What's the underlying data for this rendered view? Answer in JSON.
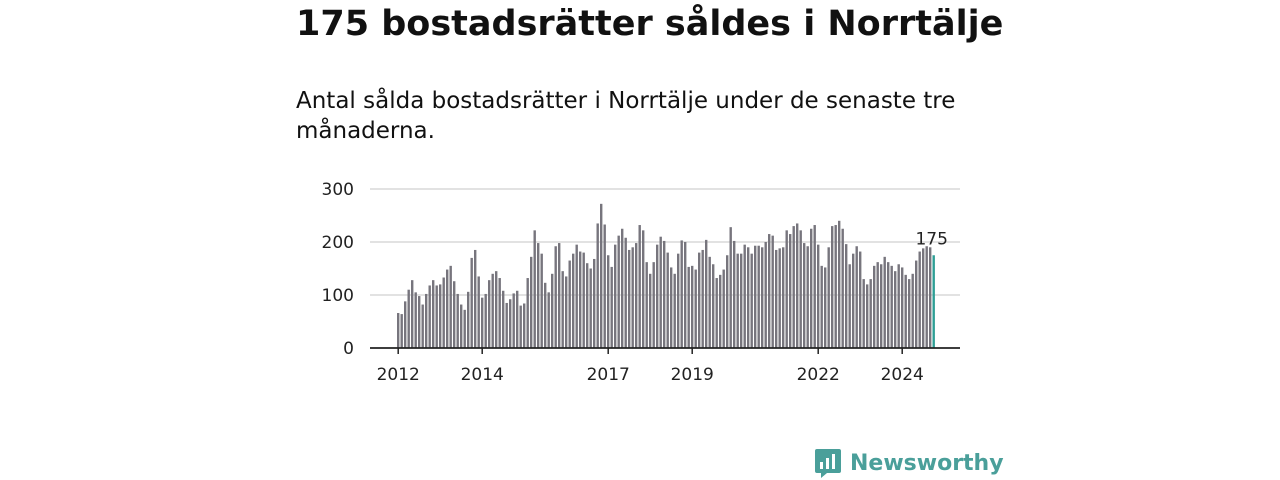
{
  "header": {
    "title": "175 bostadsrätter såldes i Norrtälje",
    "subtitle": "Antal sålda bostadsrätter i Norrtälje under de senaste tre månaderna."
  },
  "brand": {
    "name": "Newsworthy"
  },
  "colors": {
    "bar": "#77757d",
    "highlight": "#2e9e95",
    "grid": "#d9d9d9",
    "axis": "#222222",
    "brand": "#4a9f9a"
  },
  "chart_data": {
    "type": "bar",
    "title": "",
    "xlabel": "",
    "ylabel": "",
    "ylim": [
      0,
      300
    ],
    "y_ticks": [
      0,
      100,
      200,
      300
    ],
    "y_tick_labels": [
      "0",
      "100",
      "200",
      "300"
    ],
    "x_ticks": [
      {
        "index": 0,
        "label": "2012"
      },
      {
        "index": 24,
        "label": "2014"
      },
      {
        "index": 60,
        "label": "2017"
      },
      {
        "index": 84,
        "label": "2019"
      },
      {
        "index": 120,
        "label": "2022"
      },
      {
        "index": 144,
        "label": "2024"
      }
    ],
    "highlight_label": "175",
    "values": [
      66,
      64,
      88,
      110,
      128,
      105,
      98,
      82,
      102,
      118,
      128,
      118,
      120,
      133,
      148,
      155,
      126,
      102,
      82,
      72,
      106,
      170,
      185,
      135,
      95,
      102,
      128,
      140,
      145,
      132,
      108,
      85,
      92,
      103,
      108,
      80,
      84,
      132,
      172,
      222,
      198,
      178,
      123,
      105,
      140,
      192,
      198,
      145,
      135,
      165,
      178,
      195,
      182,
      180,
      160,
      150,
      168,
      235,
      272,
      233,
      175,
      153,
      195,
      212,
      225,
      208,
      185,
      190,
      198,
      232,
      222,
      162,
      140,
      162,
      195,
      210,
      202,
      180,
      152,
      140,
      178,
      203,
      200,
      153,
      155,
      148,
      180,
      185,
      204,
      172,
      158,
      132,
      138,
      148,
      175,
      228,
      202,
      178,
      178,
      195,
      190,
      178,
      193,
      193,
      190,
      200,
      215,
      212,
      185,
      188,
      190,
      222,
      215,
      230,
      235,
      222,
      198,
      192,
      225,
      232,
      195,
      155,
      152,
      190,
      230,
      232,
      240,
      225,
      196,
      158,
      178,
      192,
      182,
      130,
      120,
      130,
      155,
      162,
      158,
      172,
      162,
      155,
      145,
      158,
      152,
      138,
      130,
      140,
      165,
      182,
      188,
      192,
      190,
      175
    ],
    "highlight_index": 153
  }
}
